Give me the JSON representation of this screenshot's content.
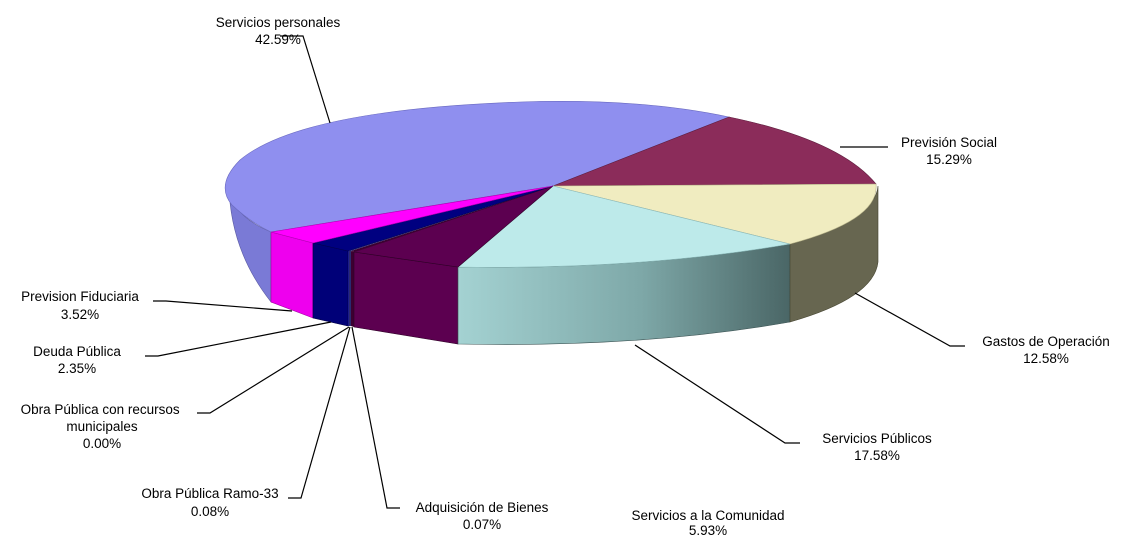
{
  "chart_data": {
    "type": "pie",
    "style": "3d",
    "legend": "none",
    "title": "",
    "slices": [
      {
        "name": "Servicios personales",
        "value_label": "42.59%",
        "value": 42.59,
        "color": "#8f8fef"
      },
      {
        "name": "Previsión Social",
        "value_label": "15.29%",
        "value": 15.29,
        "color": "#8b2c5a"
      },
      {
        "name": "Gastos de Operación",
        "value_label": "12.58%",
        "value": 12.58,
        "color": "#f0ecc0"
      },
      {
        "name": "Servicios Públicos",
        "value_label": "17.58%",
        "value": 17.58,
        "color": "#bdeaea"
      },
      {
        "name": "Servicios a la Comunidad",
        "value_label": "5.93%",
        "value": 5.93,
        "color": "#5c0050"
      },
      {
        "name": "Adquisición de Bienes",
        "value_label": "0.07%",
        "value": 0.07,
        "color": "#3c0030"
      },
      {
        "name": "Obra Pública Ramo-33",
        "value_label": "0.08%",
        "value": 0.08,
        "color": "#2a2a70"
      },
      {
        "name": "Obra Pública con recursos municipales",
        "value_label": "0.00%",
        "value": 0.0,
        "color": "#1b1b8a"
      },
      {
        "name": "Deuda Pública",
        "value_label": "2.35%",
        "value": 2.35,
        "color": "#000080"
      },
      {
        "name": "Prevision Fiduciaria",
        "value_label": "3.52%",
        "value": 3.52,
        "color": "#ff00ff"
      }
    ]
  }
}
